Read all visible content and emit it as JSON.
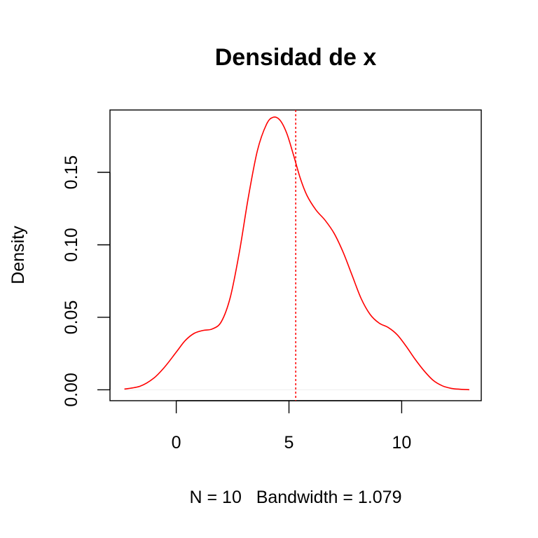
{
  "chart_data": {
    "type": "line",
    "title": "Densidad de x",
    "xlabel": "N = 10   Bandwidth = 1.079",
    "ylabel": "Density",
    "xlim": [
      -2.94,
      13.53
    ],
    "ylim": [
      -0.0075,
      0.193
    ],
    "x_ticks": [
      0,
      5,
      10
    ],
    "x_tick_labels": [
      "0",
      "5",
      "10"
    ],
    "y_ticks": [
      0.0,
      0.05,
      0.1,
      0.15
    ],
    "y_tick_labels": [
      "0.00",
      "0.05",
      "0.10",
      "0.15"
    ],
    "grid": false,
    "legend": "none",
    "colors": {
      "density": "#ff0000",
      "mean_line": "#ff0000",
      "baseline": "#eeeeee"
    },
    "series": [
      {
        "x": [
          -2.3,
          -1.6,
          -1.0,
          -0.5,
          0.0,
          0.4,
          0.8,
          1.2,
          1.6,
          2.0,
          2.4,
          2.8,
          3.2,
          3.6,
          4.0,
          4.3,
          4.6,
          4.9,
          5.2,
          5.5,
          5.8,
          6.2,
          6.6,
          7.0,
          7.4,
          7.8,
          8.2,
          8.6,
          9.0,
          9.4,
          9.8,
          10.2,
          10.6,
          11.0,
          11.4,
          11.8,
          12.2,
          12.6,
          13.0
        ],
        "y": [
          0.0005,
          0.0025,
          0.008,
          0.016,
          0.026,
          0.034,
          0.039,
          0.041,
          0.042,
          0.047,
          0.064,
          0.095,
          0.133,
          0.165,
          0.183,
          0.188,
          0.186,
          0.177,
          0.162,
          0.146,
          0.134,
          0.124,
          0.117,
          0.108,
          0.095,
          0.079,
          0.063,
          0.052,
          0.046,
          0.043,
          0.038,
          0.03,
          0.021,
          0.013,
          0.0065,
          0.0028,
          0.001,
          0.0004,
          0.0001
        ]
      }
    ],
    "vertical_line": {
      "x": 5.3,
      "style": "dotted"
    }
  }
}
